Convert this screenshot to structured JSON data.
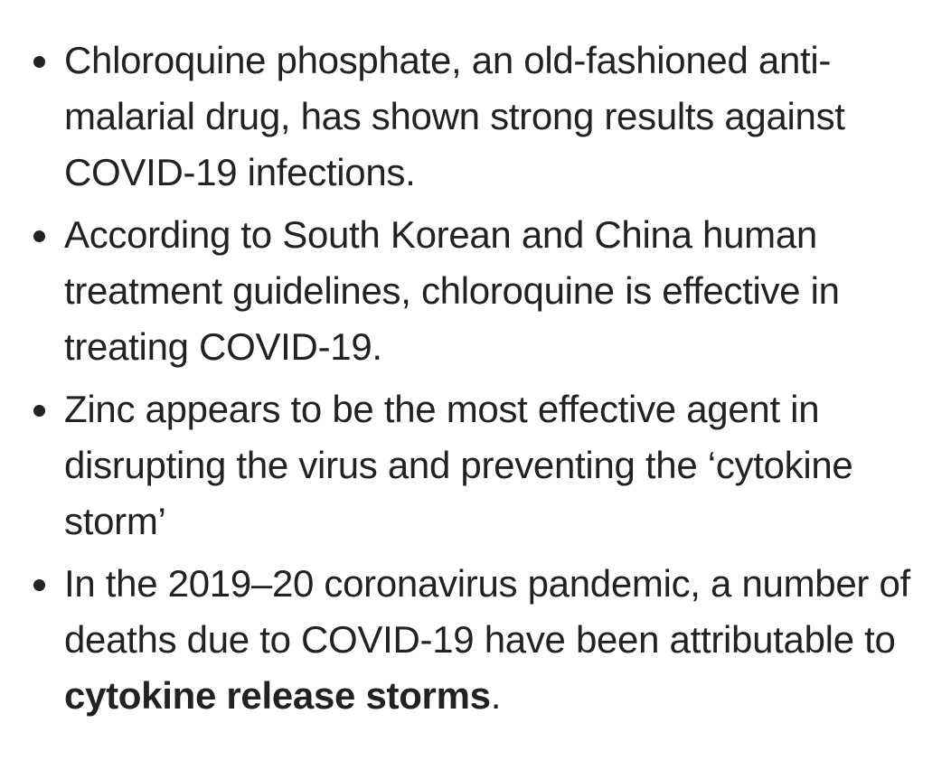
{
  "bullets": [
    {
      "text": "Chloroquine phosphate, an old-fashioned anti-malarial drug, has shown strong results against COVID-19 infections."
    },
    {
      "text": "According to South Korean and China human treatment guidelines, chloroquine is effective in treating COVID-19."
    },
    {
      "text": "Zinc appears to be the most effective agent in disrupting the virus and preventing the ‘cytokine storm’"
    },
    {
      "text_before": "In the 2019–20 coronavirus pandemic, a number of deaths due to COVID-19 have been attributable to ",
      "text_bold": "cytokine release storms",
      "text_after": "."
    }
  ]
}
